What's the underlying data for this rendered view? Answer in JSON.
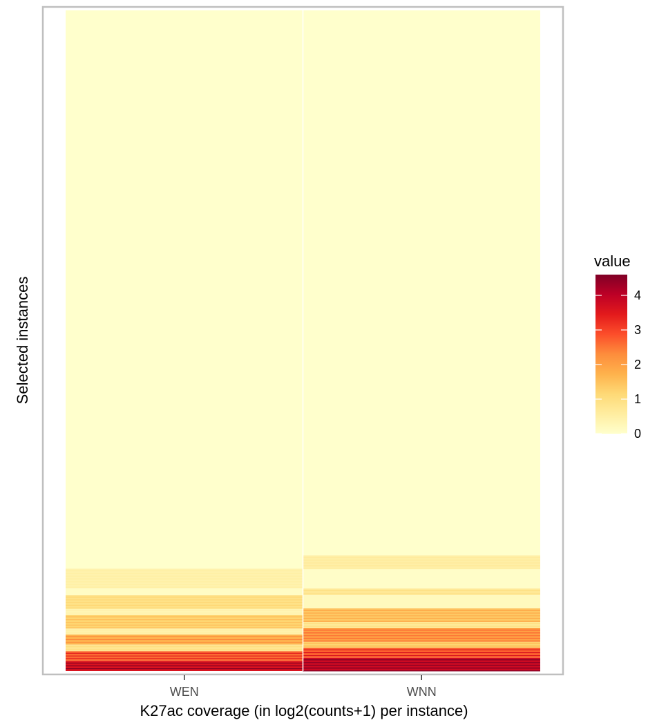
{
  "chart_data": {
    "type": "heatmap",
    "title": "",
    "xlabel": "K27ac coverage (in log2(counts+1) per instance)",
    "ylabel": "Selected instances",
    "categories": [
      "WEN",
      "WNN"
    ],
    "y_tick_labels": [],
    "legend": {
      "title": "value",
      "position": "right",
      "ticks": [
        0,
        1,
        2,
        3,
        4
      ],
      "range": [
        0,
        4.6
      ],
      "colors": [
        "#FFFFCC",
        "#FFEDA0",
        "#FED976",
        "#FEB24C",
        "#FD8D3C",
        "#FC4E2A",
        "#E31A1C",
        "#BD0026",
        "#800026"
      ]
    },
    "grid": false,
    "series": [
      {
        "name": "WEN",
        "bands": [
          {
            "from": 0.0,
            "to": 0.845,
            "value": 0.0
          },
          {
            "from": 0.845,
            "to": 0.875,
            "value": 0.4
          },
          {
            "from": 0.875,
            "to": 0.885,
            "value": 0.1
          },
          {
            "from": 0.885,
            "to": 0.905,
            "value": 0.9
          },
          {
            "from": 0.905,
            "to": 0.915,
            "value": 0.3
          },
          {
            "from": 0.915,
            "to": 0.935,
            "value": 1.2
          },
          {
            "from": 0.935,
            "to": 0.945,
            "value": 0.4
          },
          {
            "from": 0.945,
            "to": 0.96,
            "value": 1.7
          },
          {
            "from": 0.96,
            "to": 0.97,
            "value": 0.8
          },
          {
            "from": 0.97,
            "to": 0.985,
            "value": 2.6
          },
          {
            "from": 0.985,
            "to": 1.0,
            "value": 3.6
          }
        ]
      },
      {
        "name": "WNN",
        "bands": [
          {
            "from": 0.0,
            "to": 0.825,
            "value": 0.0
          },
          {
            "from": 0.825,
            "to": 0.845,
            "value": 0.5
          },
          {
            "from": 0.845,
            "to": 0.875,
            "value": 0.05
          },
          {
            "from": 0.875,
            "to": 0.885,
            "value": 0.7
          },
          {
            "from": 0.885,
            "to": 0.905,
            "value": 0.2
          },
          {
            "from": 0.905,
            "to": 0.925,
            "value": 1.4
          },
          {
            "from": 0.925,
            "to": 0.935,
            "value": 0.7
          },
          {
            "from": 0.935,
            "to": 0.955,
            "value": 2.0
          },
          {
            "from": 0.955,
            "to": 0.965,
            "value": 1.2
          },
          {
            "from": 0.965,
            "to": 0.98,
            "value": 2.7
          },
          {
            "from": 0.98,
            "to": 1.0,
            "value": 3.8
          }
        ]
      }
    ]
  }
}
